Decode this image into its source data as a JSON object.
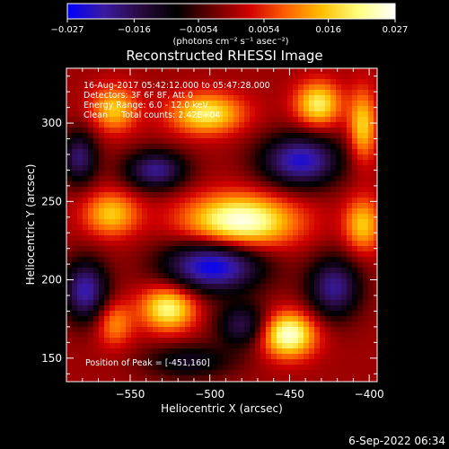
{
  "chart_data": {
    "type": "heatmap",
    "title": "Reconstructed RHESSI Image",
    "xlabel": "Heliocentric X (arcsec)",
    "ylabel": "Heliocentric Y (arcsec)",
    "xlim": [
      -590,
      -395
    ],
    "ylim": [
      135,
      335
    ],
    "x_ticks": [
      -550,
      -500,
      -450,
      -400
    ],
    "y_ticks": [
      150,
      200,
      250,
      300
    ],
    "colorbar": {
      "range": [
        -0.027,
        0.027
      ],
      "ticks": [
        "-0.027",
        "-0.016",
        "-0.0054",
        "0.0054",
        "0.016",
        "0.027"
      ],
      "units": "(photons cm⁻² s⁻¹ asec⁻²)",
      "colormap": [
        "#0000ff",
        "#3a1aa0",
        "#2a0a40",
        "#000000",
        "#6a0000",
        "#d00000",
        "#ff6000",
        "#ffc000",
        "#ffff80",
        "#ffffff"
      ]
    },
    "annotations": {
      "line1": "16-Aug-2017 05:42:12.000 to 05:47:28.000",
      "line2": "Detectors: 3F 6F 8F, Att 0",
      "line3": "Energy Range: 6.0 - 12.0 keV",
      "line4": "Clean     Total counts: 2.42E+04",
      "peak": "Position of Peak = [-451,160]"
    },
    "sources": [
      {
        "x": -481,
        "y": 237,
        "v": 0.027,
        "sx": 24,
        "sy": 12
      },
      {
        "x": -526,
        "y": 182,
        "v": 0.022,
        "sx": 12,
        "sy": 10
      },
      {
        "x": -451,
        "y": 165,
        "v": 0.026,
        "sx": 12,
        "sy": 10
      },
      {
        "x": -562,
        "y": 242,
        "v": 0.016,
        "sx": 12,
        "sy": 10
      },
      {
        "x": -560,
        "y": 172,
        "v": 0.012,
        "sx": 8,
        "sy": 10
      },
      {
        "x": -502,
        "y": 306,
        "v": 0.02,
        "sx": 16,
        "sy": 9
      },
      {
        "x": -560,
        "y": 309,
        "v": 0.016,
        "sx": 10,
        "sy": 10
      },
      {
        "x": -432,
        "y": 312,
        "v": 0.02,
        "sx": 10,
        "sy": 10
      },
      {
        "x": -404,
        "y": 235,
        "v": 0.016,
        "sx": 8,
        "sy": 12
      },
      {
        "x": -404,
        "y": 298,
        "v": 0.017,
        "sx": 6,
        "sy": 16
      },
      {
        "x": -498,
        "y": 209,
        "v": -0.027,
        "sx": 22,
        "sy": 12
      },
      {
        "x": -443,
        "y": 276,
        "v": -0.024,
        "sx": 18,
        "sy": 12
      },
      {
        "x": -578,
        "y": 193,
        "v": -0.022,
        "sx": 10,
        "sy": 14
      },
      {
        "x": -534,
        "y": 270,
        "v": -0.02,
        "sx": 14,
        "sy": 9
      },
      {
        "x": -422,
        "y": 195,
        "v": -0.02,
        "sx": 12,
        "sy": 14
      },
      {
        "x": -479,
        "y": 171,
        "v": -0.016,
        "sx": 12,
        "sy": 10
      },
      {
        "x": -582,
        "y": 278,
        "v": -0.018,
        "sx": 8,
        "sy": 12
      },
      {
        "x": -513,
        "y": 148,
        "v": -0.012,
        "sx": 20,
        "sy": 8
      }
    ]
  },
  "footer": {
    "timestamp": "6-Sep-2022 06:34"
  }
}
